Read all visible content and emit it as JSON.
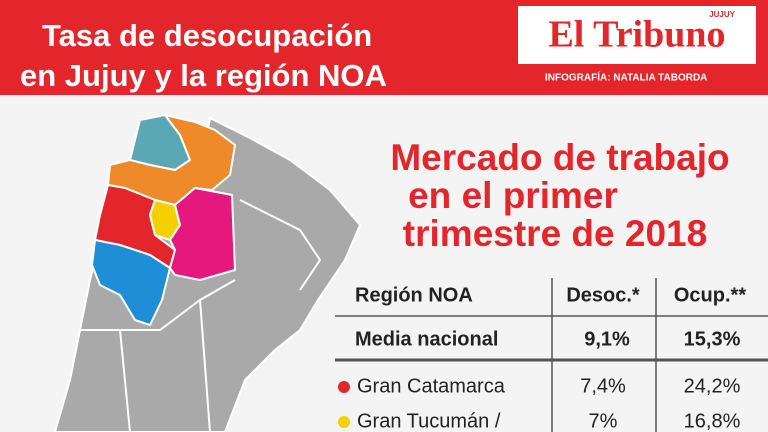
{
  "header": {
    "title_lines": [
      "Tasa de desocupación",
      "en Jujuy y la región NOA"
    ],
    "logo": "El Tribuno",
    "logo_tag": "JUJUY",
    "credit": "INFOGRAFÍA: NATALIA TABORDA"
  },
  "subtitle_lines": [
    "Mercado de trabajo",
    "en el primer",
    "trimestre de 2018"
  ],
  "table": {
    "header": [
      "Región NOA",
      "Desoc.*",
      "Ocup.**"
    ],
    "rows": [
      [
        "Media nacional",
        "9,1%",
        "15,3%"
      ],
      [
        "Gran Catamarca",
        "7,4%",
        "24,2%"
      ],
      [
        "Gran Tucumán /",
        "7%",
        "16,8%"
      ]
    ]
  }
}
